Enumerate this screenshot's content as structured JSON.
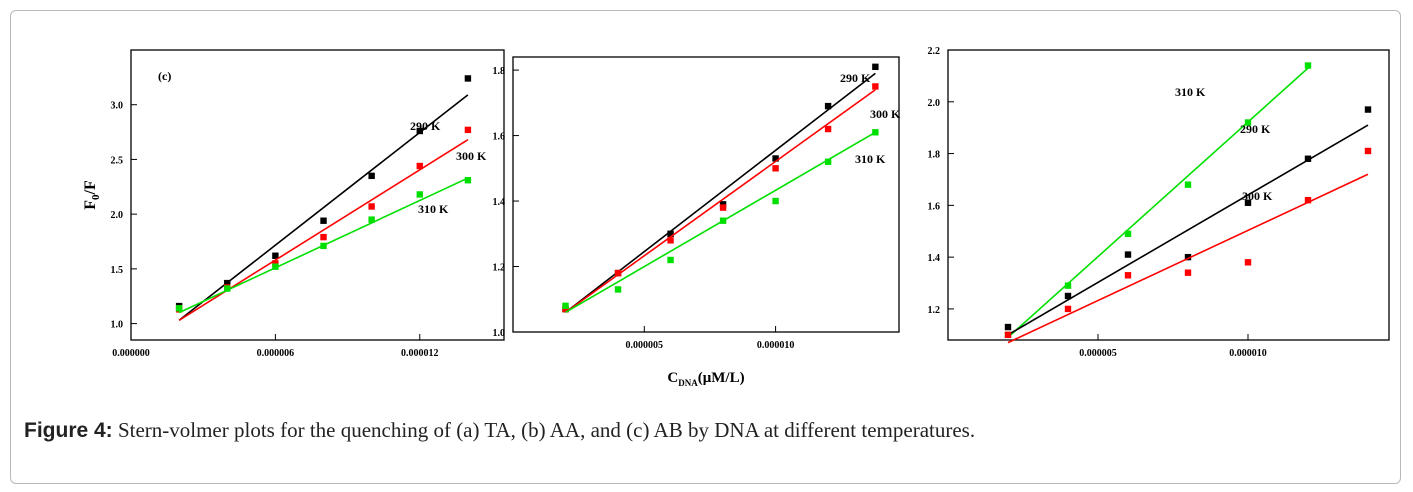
{
  "figure": {
    "caption_label": "Figure 4:",
    "caption_text": "Stern-volmer plots for the quenching of (a) TA, (b) AA, and (c) AB by DNA at different temperatures.",
    "xlabel_main": "C",
    "xlabel_sub": "DNA",
    "xlabel_unit": "(μM/L)"
  },
  "colors": {
    "290 K": "#000000",
    "300 K": "#ff0000",
    "310 K": "#00e000"
  },
  "chart_data": [
    {
      "type": "scatter",
      "panel_label": "(c)",
      "ylabel": "F0/F",
      "xlim": [
        0,
        1.55e-05
      ],
      "ylim": [
        0.85,
        3.5
      ],
      "xticks": [
        0,
        6e-06,
        1.2e-05
      ],
      "xtick_labels": [
        "0.000000",
        "0.000006",
        "0.000012"
      ],
      "yticks": [
        1.0,
        1.5,
        2.0,
        2.5,
        3.0
      ],
      "ytick_labels": [
        "1.0",
        "1.5",
        "2.0",
        "2.5",
        "3.0"
      ],
      "series": [
        {
          "name": "290 K",
          "x": [
            2e-06,
            4e-06,
            6e-06,
            8e-06,
            1e-05,
            1.2e-05,
            1.4e-05
          ],
          "y": [
            1.16,
            1.37,
            1.62,
            1.94,
            2.35,
            2.76,
            3.24
          ],
          "fit_y": [
            1.03,
            3.09
          ]
        },
        {
          "name": "300 K",
          "x": [
            2e-06,
            4e-06,
            6e-06,
            8e-06,
            1e-05,
            1.2e-05,
            1.4e-05
          ],
          "y": [
            1.13,
            1.33,
            1.55,
            1.79,
            2.07,
            2.44,
            2.77
          ],
          "fit_y": [
            1.03,
            2.68
          ]
        },
        {
          "name": "310 K",
          "x": [
            2e-06,
            4e-06,
            6e-06,
            8e-06,
            1e-05,
            1.2e-05,
            1.4e-05
          ],
          "y": [
            1.14,
            1.32,
            1.52,
            1.71,
            1.95,
            2.18,
            2.31
          ],
          "fit_y": [
            1.1,
            2.33
          ]
        }
      ]
    },
    {
      "type": "scatter",
      "ylim": [
        1.0,
        1.84
      ],
      "xlim": [
        0,
        1.47e-05
      ],
      "xticks": [
        5e-06,
        1e-05
      ],
      "xtick_labels": [
        "0.000005",
        "0.000010"
      ],
      "yticks": [
        1.0,
        1.2,
        1.4,
        1.6,
        1.8
      ],
      "ytick_labels": [
        "1.0",
        "1.2",
        "1.4",
        "1.6",
        "1.8"
      ],
      "series": [
        {
          "name": "290 K",
          "x": [
            2e-06,
            4e-06,
            6e-06,
            8e-06,
            1e-05,
            1.2e-05,
            1.38e-05
          ],
          "y": [
            1.07,
            1.18,
            1.3,
            1.39,
            1.53,
            1.69,
            1.81
          ],
          "fit_y": [
            1.06,
            1.79
          ]
        },
        {
          "name": "300 K",
          "x": [
            2e-06,
            4e-06,
            6e-06,
            8e-06,
            1e-05,
            1.2e-05,
            1.38e-05
          ],
          "y": [
            1.07,
            1.18,
            1.28,
            1.38,
            1.5,
            1.62,
            1.75
          ],
          "fit_y": [
            1.06,
            1.74
          ]
        },
        {
          "name": "310 K",
          "x": [
            2e-06,
            4e-06,
            6e-06,
            8e-06,
            1e-05,
            1.2e-05,
            1.38e-05
          ],
          "y": [
            1.08,
            1.13,
            1.22,
            1.34,
            1.4,
            1.52,
            1.61
          ],
          "fit_y": [
            1.06,
            1.61
          ]
        }
      ]
    },
    {
      "type": "scatter",
      "ylim": [
        1.08,
        2.2
      ],
      "xlim": [
        0,
        1.47e-05
      ],
      "xticks": [
        5e-06,
        1e-05
      ],
      "xtick_labels": [
        "0.000005",
        "0.000010"
      ],
      "yticks": [
        1.2,
        1.4,
        1.6,
        1.8,
        2.0,
        2.2
      ],
      "ytick_labels": [
        "1.2",
        "1.4",
        "1.6",
        "1.8",
        "2.0",
        "2.2"
      ],
      "series": [
        {
          "name": "310 K",
          "x": [
            2e-06,
            4e-06,
            6e-06,
            8e-06,
            1e-05,
            1.2e-05
          ],
          "y": [
            1.1,
            1.29,
            1.49,
            1.68,
            1.92,
            2.14
          ],
          "fit_x": [
            2e-06,
            1.2e-05
          ],
          "fit_y": [
            1.09,
            2.13
          ]
        },
        {
          "name": "290 K",
          "x": [
            2e-06,
            4e-06,
            6e-06,
            8e-06,
            1e-05,
            1.2e-05,
            1.4e-05
          ],
          "y": [
            1.13,
            1.25,
            1.41,
            1.4,
            1.61,
            1.78,
            1.97
          ],
          "fit_x": [
            2e-06,
            1.4e-05
          ],
          "fit_y": [
            1.1,
            1.91
          ]
        },
        {
          "name": "300 K",
          "x": [
            2e-06,
            4e-06,
            6e-06,
            8e-06,
            1e-05,
            1.2e-05,
            1.4e-05
          ],
          "y": [
            1.1,
            1.2,
            1.33,
            1.34,
            1.38,
            1.62,
            1.81
          ],
          "fit_x": [
            2e-06,
            1.4e-05
          ],
          "fit_y": [
            1.07,
            1.72
          ]
        }
      ]
    }
  ]
}
